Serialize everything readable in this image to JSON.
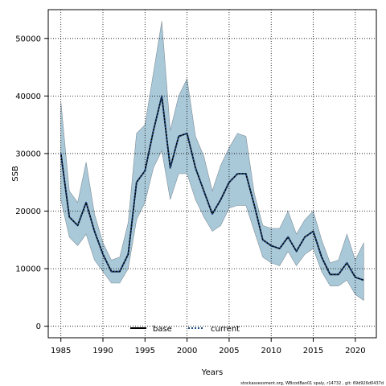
{
  "chart_data": {
    "type": "line",
    "title": "",
    "xlabel": "Years",
    "ylabel": "SSB",
    "xlim": [
      1983.5,
      2022.5
    ],
    "ylim": [
      -2000,
      55000
    ],
    "x_ticks": [
      1985,
      1990,
      1995,
      2000,
      2005,
      2010,
      2015,
      2020
    ],
    "y_ticks": [
      0,
      10000,
      20000,
      30000,
      40000,
      50000
    ],
    "grid": true,
    "legend_placement": "bottom-center",
    "x": [
      1985,
      1986,
      1987,
      1988,
      1989,
      1990,
      1991,
      1992,
      1993,
      1994,
      1995,
      1996,
      1997,
      1998,
      1999,
      2000,
      2001,
      2002,
      2003,
      2004,
      2005,
      2006,
      2007,
      2008,
      2009,
      2010,
      2011,
      2012,
      2013,
      2014,
      2015,
      2016,
      2017,
      2018,
      2019,
      2020,
      2021
    ],
    "series": [
      {
        "name": "base",
        "color": "#000000",
        "style": "solid",
        "values": [
          30000,
          19000,
          17500,
          21500,
          16500,
          12500,
          9500,
          9500,
          12500,
          25000,
          27000,
          34000,
          40000,
          27500,
          33000,
          33500,
          27500,
          23500,
          19500,
          22000,
          25000,
          26500,
          26500,
          21000,
          15000,
          14000,
          13500,
          15500,
          13000,
          15500,
          16500,
          12000,
          9000,
          9000,
          11000,
          8500,
          8000
        ]
      },
      {
        "name": "current",
        "color": "#1f4e8c",
        "style": "dotted",
        "values": [
          30000,
          19000,
          17500,
          21500,
          16500,
          12500,
          9500,
          9500,
          12500,
          25000,
          27000,
          34000,
          40000,
          27500,
          33000,
          33500,
          27500,
          23500,
          19500,
          22000,
          25000,
          26500,
          26500,
          21000,
          15000,
          14000,
          13500,
          15500,
          13000,
          15500,
          16500,
          12000,
          9000,
          9000,
          11000,
          8500,
          8000
        ]
      }
    ],
    "band": {
      "color": "#a9c8d8",
      "upper": [
        39000,
        23500,
        21500,
        28500,
        19500,
        14500,
        11500,
        12000,
        18000,
        33500,
        35000,
        44000,
        53000,
        34000,
        40000,
        43000,
        33000,
        29500,
        23500,
        28000,
        31000,
        33500,
        33000,
        23000,
        17500,
        17000,
        17000,
        20000,
        16000,
        18500,
        20000,
        15000,
        11000,
        11500,
        16000,
        11500,
        14500
      ],
      "lower": [
        22000,
        15500,
        14000,
        16000,
        11500,
        9500,
        7500,
        7500,
        10000,
        18500,
        21500,
        27500,
        30500,
        22000,
        26500,
        26500,
        22000,
        19000,
        16500,
        17500,
        20500,
        21000,
        21000,
        16500,
        12000,
        11000,
        10500,
        13000,
        10500,
        12500,
        13500,
        9500,
        7000,
        7000,
        8000,
        5500,
        4500
      ]
    }
  },
  "footer": {
    "note": "stockassessment.org, WBcodBan01 spaly, r14732 , git: 69d926d0437d"
  }
}
